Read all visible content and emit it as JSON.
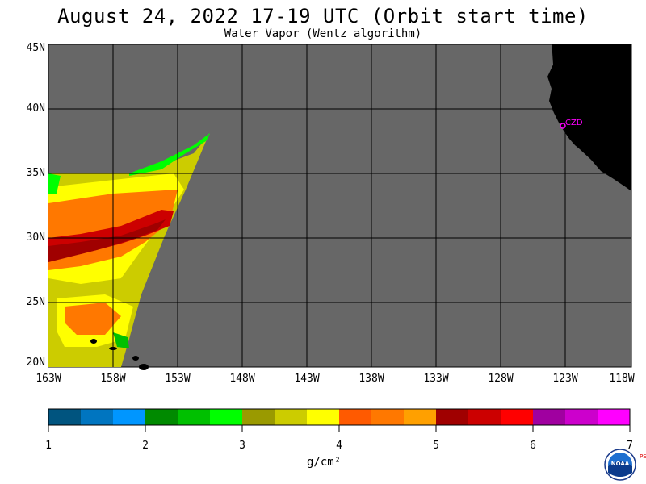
{
  "title": "August 24, 2022  17-19 UTC  (Orbit start time)",
  "subtitle": "Water Vapor (Wentz algorithm)",
  "lat_labels": [
    "45N",
    "40N",
    "35N",
    "30N",
    "25N",
    "20N"
  ],
  "lon_labels": [
    "163W",
    "158W",
    "153W",
    "148W",
    "143W",
    "138W",
    "133W",
    "128W",
    "123W",
    "118W"
  ],
  "station_label": "CZD",
  "colorbar": {
    "ticks": [
      "1",
      "2",
      "3",
      "4",
      "5",
      "6",
      "7"
    ],
    "units": "g/cm²",
    "colors": [
      "#00547f",
      "#0075c0",
      "#0096ff",
      "#008a00",
      "#00c000",
      "#00ff00",
      "#9a9a00",
      "#cccc00",
      "#ffff00",
      "#ff5a00",
      "#ff7800",
      "#ffa000",
      "#a00000",
      "#cc0000",
      "#ff0000",
      "#a000a0",
      "#cc00cc",
      "#ff00ff"
    ]
  },
  "colors": {
    "ocean": "#676767",
    "land": "#000000",
    "grid": "#000000",
    "station": "#ff00ff"
  },
  "logo": {
    "text": "NOAA",
    "side_letters": "PSL"
  }
}
